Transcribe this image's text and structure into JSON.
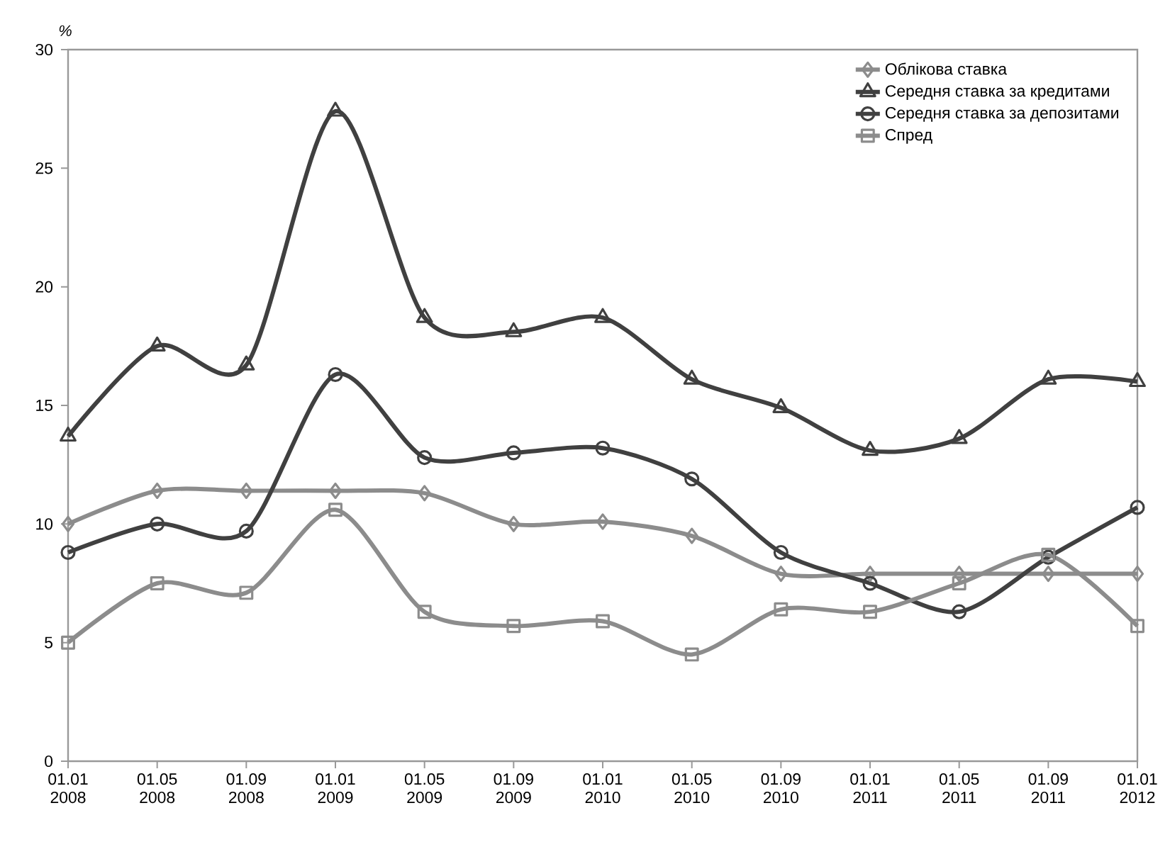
{
  "chart_data": {
    "type": "line",
    "ylabel": "%",
    "categories": [
      "01.01 2008",
      "01.05 2008",
      "01.09 2008",
      "01.01 2009",
      "01.05 2009",
      "01.09 2009",
      "01.01 2010",
      "01.05 2010",
      "01.09 2010",
      "01.01 2011",
      "01.05 2011",
      "01.09 2011",
      "01.01 2012"
    ],
    "series": [
      {
        "name": "Облікова ставка",
        "color": "#8c8c8c",
        "marker": "diamond",
        "values": [
          10.0,
          11.4,
          11.4,
          11.4,
          11.3,
          10.0,
          10.1,
          9.5,
          7.9,
          7.9,
          7.9,
          7.9,
          7.9
        ]
      },
      {
        "name": "Середня ставка за кредитами",
        "color": "#404040",
        "marker": "triangle",
        "values": [
          13.7,
          17.5,
          16.7,
          27.4,
          18.7,
          18.1,
          18.7,
          16.1,
          14.9,
          13.1,
          13.6,
          16.1,
          16.0
        ]
      },
      {
        "name": "Середня ставка за депозитами",
        "color": "#404040",
        "marker": "circle",
        "values": [
          8.8,
          10.0,
          9.7,
          16.3,
          12.8,
          13.0,
          13.2,
          11.9,
          8.8,
          7.5,
          6.3,
          8.6,
          10.7
        ]
      },
      {
        "name": "Спред",
        "color": "#8c8c8c",
        "marker": "square",
        "values": [
          5.0,
          7.5,
          7.1,
          10.6,
          6.3,
          5.7,
          5.9,
          4.5,
          6.4,
          6.3,
          7.5,
          8.7,
          5.7
        ]
      }
    ],
    "ylim": [
      0,
      30
    ],
    "yticks": [
      0,
      5,
      10,
      15,
      20,
      25,
      30
    ],
    "grid": false,
    "legend": "top right",
    "line_style": "solid"
  }
}
